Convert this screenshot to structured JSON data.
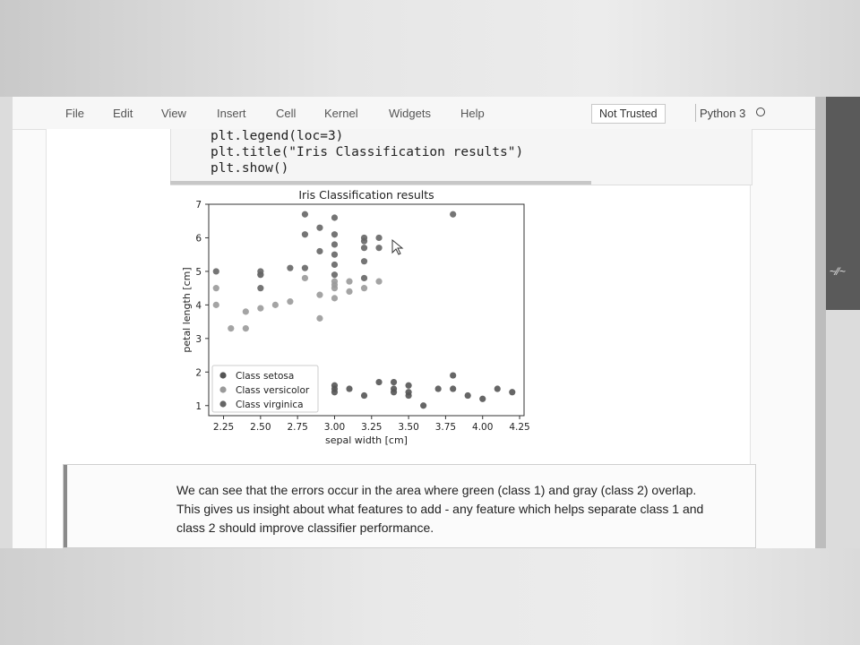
{
  "menu": [
    "File",
    "Edit",
    "View",
    "Insert",
    "Cell",
    "Kernel",
    "Widgets",
    "Help"
  ],
  "trust_badge": "Not Trusted",
  "kernel": {
    "name": "Python 3",
    "status_icon": "kernel-idle-circle-icon"
  },
  "code_lines": [
    "plt.legend(loc=3)",
    "plt.title(\"Iris Classification results\")",
    "plt.show()"
  ],
  "markdown_lines": [
    "We can see that the errors occur in the area where green (class 1) and gray (class 2) overlap.",
    "This gives us insight about what features to add - any feature which helps separate class 1 and",
    "class 2 should improve classifier performance."
  ],
  "chart_data": {
    "type": "scatter",
    "title": "Iris Classification results",
    "xlabel": "sepal width [cm]",
    "ylabel": "petal length [cm]",
    "xlim": [
      2.15,
      4.28
    ],
    "ylim": [
      0.7,
      7.0
    ],
    "xticks": [
      "2.25",
      "2.50",
      "2.75",
      "3.00",
      "3.25",
      "3.50",
      "3.75",
      "4.00",
      "4.25"
    ],
    "yticks": [
      "1",
      "2",
      "3",
      "4",
      "5",
      "6",
      "7"
    ],
    "grid": false,
    "legend_position": "lower-left",
    "series": [
      {
        "name": "Class setosa",
        "color": "#555555",
        "x": [
          3.0,
          3.0,
          3.1,
          3.2,
          3.3,
          3.4,
          3.4,
          3.5,
          3.5,
          3.6,
          3.7,
          3.8,
          3.8,
          3.9,
          4.0,
          4.1,
          4.2,
          3.0,
          3.4,
          3.5
        ],
        "y": [
          1.4,
          1.6,
          1.5,
          1.3,
          1.7,
          1.5,
          1.7,
          1.3,
          1.6,
          1.0,
          1.5,
          1.5,
          1.9,
          1.3,
          1.2,
          1.5,
          1.4,
          1.5,
          1.4,
          1.4
        ]
      },
      {
        "name": "Class versicolor",
        "color": "#9a9a9a",
        "x": [
          2.2,
          2.2,
          2.3,
          2.4,
          2.4,
          2.5,
          2.5,
          2.6,
          2.7,
          2.8,
          2.9,
          2.9,
          3.0,
          3.0,
          3.0,
          3.0,
          3.1,
          3.1,
          3.2,
          3.3
        ],
        "y": [
          4.5,
          4.0,
          3.3,
          3.8,
          3.3,
          3.9,
          4.9,
          4.0,
          4.1,
          4.8,
          4.3,
          3.6,
          4.2,
          4.5,
          4.6,
          4.7,
          4.4,
          4.7,
          4.5,
          4.7
        ]
      },
      {
        "name": "Class virginica",
        "color": "#666666",
        "x": [
          2.2,
          2.5,
          2.5,
          2.5,
          2.7,
          2.8,
          2.8,
          2.8,
          2.9,
          2.9,
          3.0,
          3.0,
          3.0,
          3.0,
          3.0,
          3.0,
          3.2,
          3.2,
          3.2,
          3.2,
          3.2,
          3.3,
          3.3,
          3.8
        ],
        "y": [
          5.0,
          5.0,
          4.5,
          4.9,
          5.1,
          6.7,
          6.1,
          5.1,
          6.3,
          5.6,
          6.6,
          6.1,
          5.8,
          5.5,
          5.2,
          4.9,
          6.0,
          5.9,
          5.7,
          5.3,
          4.8,
          6.0,
          5.7,
          6.7
        ]
      }
    ]
  }
}
